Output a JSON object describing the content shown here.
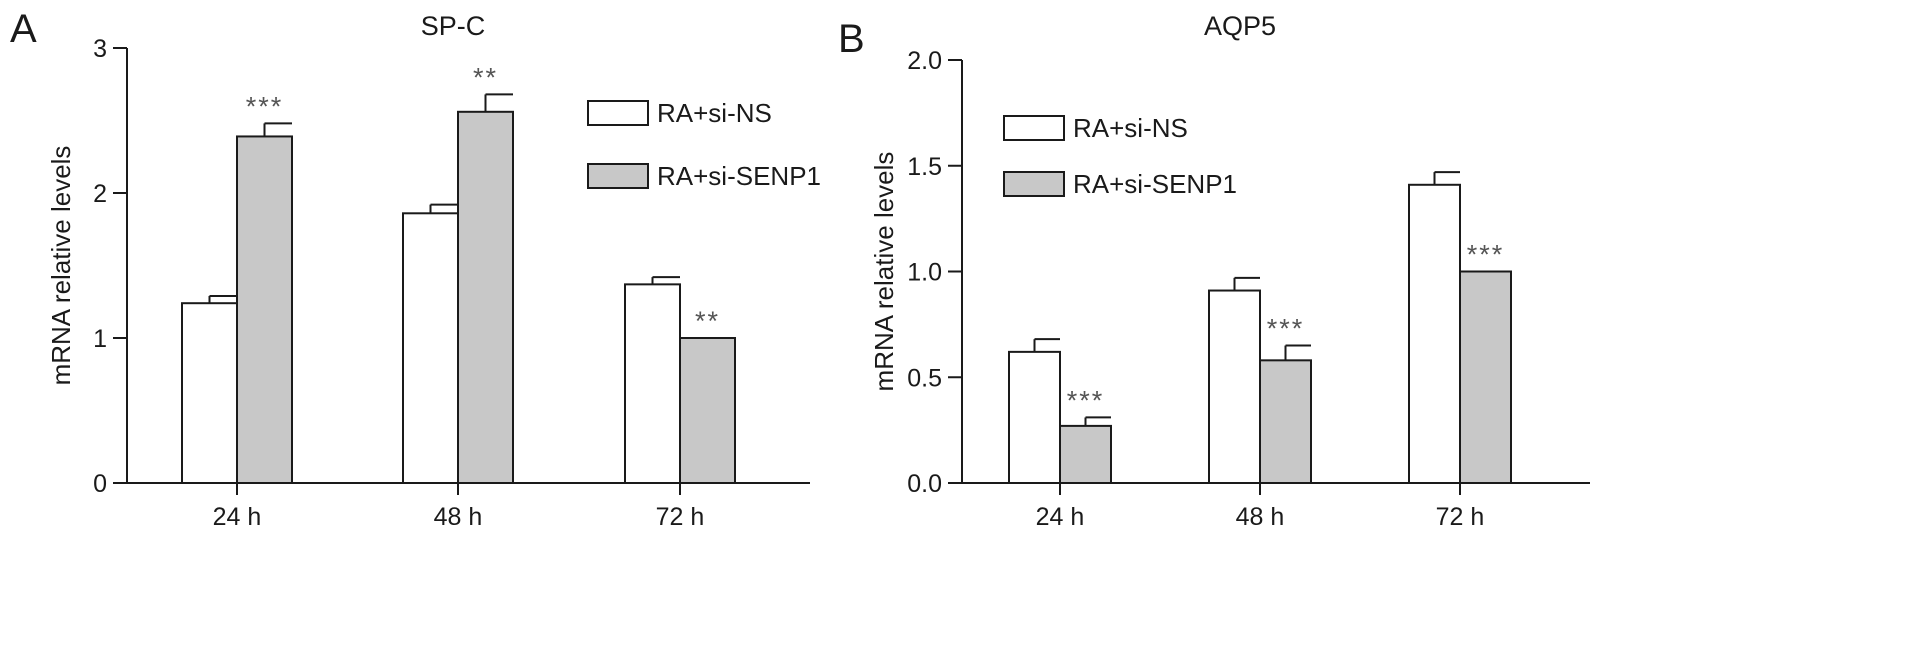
{
  "colors": {
    "axis": "#1a1a1a",
    "series_fill": [
      "#ffffff",
      "#c8c8c8"
    ],
    "series_stroke": "#1a1a1a"
  },
  "chart_data": [
    {
      "panel_label": "A",
      "type": "bar",
      "title": "SP-C",
      "xlabel": "",
      "ylabel": "mRNA relative levels",
      "ylim": [
        0,
        3
      ],
      "yticks": [
        0,
        1,
        2,
        3
      ],
      "ytick_labels": [
        "0",
        "1",
        "2",
        "3"
      ],
      "categories": [
        "24 h",
        "48 h",
        "72 h"
      ],
      "series": [
        {
          "name": "RA+si-NS",
          "values": [
            1.24,
            1.86,
            1.37
          ],
          "errors": [
            0.05,
            0.06,
            0.05
          ]
        },
        {
          "name": "RA+si-SENP1",
          "values": [
            2.39,
            2.56,
            1.0
          ],
          "errors": [
            0.09,
            0.12,
            0.0
          ]
        }
      ],
      "significance": [
        {
          "category": 0,
          "series": 1,
          "label": "***"
        },
        {
          "category": 1,
          "series": 1,
          "label": "**"
        },
        {
          "category": 2,
          "series": 1,
          "label": "**"
        }
      ],
      "legend_position": "top-right",
      "grid": false
    },
    {
      "panel_label": "B",
      "type": "bar",
      "title": "AQP5",
      "xlabel": "",
      "ylabel": "mRNA relative levels",
      "ylim": [
        0,
        2
      ],
      "yticks": [
        0,
        0.5,
        1.0,
        1.5,
        2.0
      ],
      "ytick_labels": [
        "0.0",
        "0.5",
        "1.0",
        "1.5",
        "2.0"
      ],
      "categories": [
        "24 h",
        "48 h",
        "72 h"
      ],
      "series": [
        {
          "name": "RA+si-NS",
          "values": [
            0.62,
            0.91,
            1.41
          ],
          "errors": [
            0.06,
            0.06,
            0.06
          ]
        },
        {
          "name": "RA+si-SENP1",
          "values": [
            0.27,
            0.58,
            1.0
          ],
          "errors": [
            0.04,
            0.07,
            0.0
          ]
        }
      ],
      "significance": [
        {
          "category": 0,
          "series": 1,
          "label": "***"
        },
        {
          "category": 1,
          "series": 1,
          "label": "***"
        },
        {
          "category": 2,
          "series": 1,
          "label": "***"
        }
      ],
      "legend_position": "top-left",
      "grid": false
    }
  ]
}
